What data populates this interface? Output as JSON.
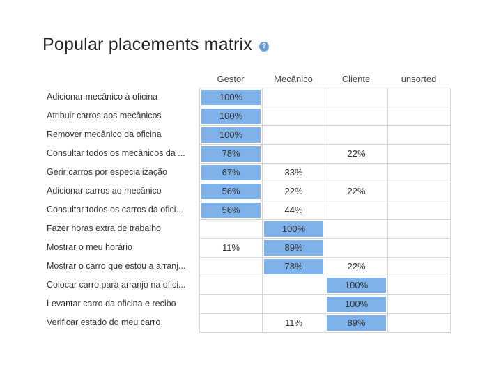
{
  "header": {
    "title": "Popular placements matrix",
    "help_glyph": "?"
  },
  "columns": [
    "Gestor",
    "Mecânico",
    "Cliente",
    "unsorted"
  ],
  "rows": [
    {
      "label": "Adicionar mecânico à oficina",
      "values": [
        "100%",
        "",
        "",
        ""
      ],
      "highlight": 0
    },
    {
      "label": "Atribuir carros aos mecânicos",
      "values": [
        "100%",
        "",
        "",
        ""
      ],
      "highlight": 0
    },
    {
      "label": "Remover mecânico da oficina",
      "values": [
        "100%",
        "",
        "",
        ""
      ],
      "highlight": 0
    },
    {
      "label": "Consultar todos os mecânicos da ...",
      "values": [
        "78%",
        "",
        "22%",
        ""
      ],
      "highlight": 0
    },
    {
      "label": "Gerir carros por especialização",
      "values": [
        "67%",
        "33%",
        "",
        ""
      ],
      "highlight": 0
    },
    {
      "label": "Adicionar carros ao mecânico",
      "values": [
        "56%",
        "22%",
        "22%",
        ""
      ],
      "highlight": 0
    },
    {
      "label": "Consultar todos os carros da ofici...",
      "values": [
        "56%",
        "44%",
        "",
        ""
      ],
      "highlight": 0
    },
    {
      "label": "Fazer horas extra de trabalho",
      "values": [
        "",
        "100%",
        "",
        ""
      ],
      "highlight": 1
    },
    {
      "label": "Mostrar o meu horário",
      "values": [
        "11%",
        "89%",
        "",
        ""
      ],
      "highlight": 1
    },
    {
      "label": "Mostrar o carro que estou a arranj...",
      "values": [
        "",
        "78%",
        "22%",
        ""
      ],
      "highlight": 1
    },
    {
      "label": "Colocar carro para arranjo na ofici...",
      "values": [
        "",
        "",
        "100%",
        ""
      ],
      "highlight": 2
    },
    {
      "label": "Levantar carro da oficina e recibo",
      "values": [
        "",
        "",
        "100%",
        ""
      ],
      "highlight": 2
    },
    {
      "label": "Verificar estado do meu carro",
      "values": [
        "",
        "11%",
        "89%",
        ""
      ],
      "highlight": 2
    }
  ],
  "colors": {
    "highlight": "#7fb2ea",
    "help_icon": "#6e9fd4",
    "grid_border": "#d4d4d4"
  },
  "icons": {
    "help": "question-circle-icon"
  }
}
